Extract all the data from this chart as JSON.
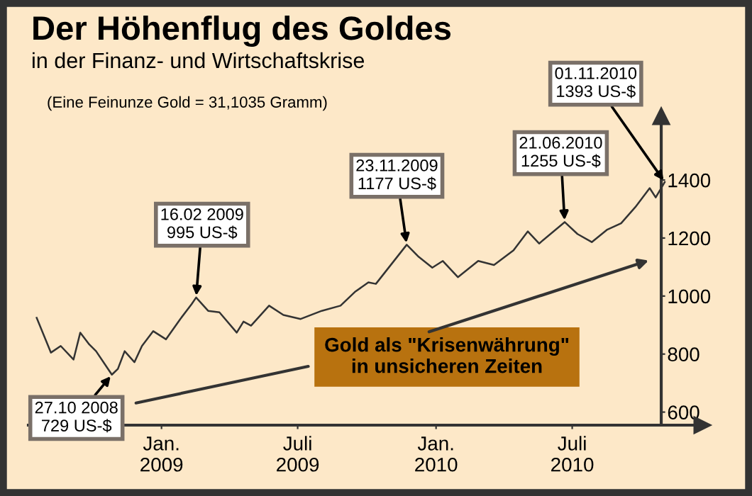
{
  "chart_data": {
    "type": "line",
    "title": "Der Höhenflug des Goldes",
    "subtitle": "in der Finanz- und Wirtschaftskrise",
    "x": [
      "2008-07-19",
      "2008-08-07",
      "2008-08-20",
      "2008-09-06",
      "2008-09-15",
      "2008-09-27",
      "2008-10-06",
      "2008-10-27",
      "2008-11-04",
      "2008-11-13",
      "2008-11-26",
      "2008-12-06",
      "2008-12-21",
      "2009-01-07",
      "2009-01-26",
      "2009-02-10",
      "2009-02-16",
      "2009-03-04",
      "2009-03-19",
      "2009-04-11",
      "2009-04-20",
      "2009-04-30",
      "2009-05-24",
      "2009-06-12",
      "2009-07-05",
      "2009-08-02",
      "2009-08-27",
      "2009-09-15",
      "2009-10-03",
      "2009-10-13",
      "2009-11-23",
      "2009-12-09",
      "2009-12-27",
      "2010-01-10",
      "2010-01-30",
      "2010-02-26",
      "2010-03-19",
      "2010-04-14",
      "2010-05-03",
      "2010-05-18",
      "2010-06-21",
      "2010-07-08",
      "2010-07-27",
      "2010-08-16",
      "2010-09-04",
      "2010-09-23",
      "2010-10-12",
      "2010-10-20",
      "2010-11-01"
    ],
    "series": [
      {
        "color": "#333333",
        "values": [
          925,
          805,
          828,
          781,
          874,
          833,
          810,
          729,
          749,
          810,
          772,
          828,
          879,
          851,
          921,
          972,
          995,
          949,
          944,
          874,
          912,
          898,
          967,
          935,
          921,
          949,
          967,
          1014,
          1047,
          1042,
          1177,
          1135,
          1098,
          1121,
          1065,
          1121,
          1107,
          1158,
          1223,
          1181,
          1255,
          1214,
          1186,
          1228,
          1251,
          1307,
          1372,
          1340,
          1393
        ]
      }
    ],
    "xlim": [
      "2008-07-08",
      "2010-12-21"
    ],
    "xticks": [
      {
        "value": "2009-01-01",
        "label": "Jan.\n2009"
      },
      {
        "value": "2009-07-01",
        "label": "Juli\n2009"
      },
      {
        "value": "2010-01-01",
        "label": "Jan.\n2010"
      },
      {
        "value": "2010-07-01",
        "label": "Juli\n2010"
      }
    ],
    "ylim": [
      555,
      1620
    ],
    "yticks": [
      600,
      800,
      1000,
      1200,
      1400
    ],
    "annotations": [
      "(Eine Feinunze Gold = 31,1035 Gramm)",
      {
        "text": "27.10 2008\n729 US-$",
        "x": "2008-10-27",
        "y": 729
      },
      {
        "text": "16.02 2009\n995 US-$",
        "x": "2009-02-16",
        "y": 995
      },
      {
        "text": "23.11.2009\n1177 US-$",
        "x": "2009-11-23",
        "y": 1177
      },
      {
        "text": "21.06.2010\n1255 US-$",
        "x": "2010-06-21",
        "y": 1255
      },
      {
        "text": "01.11.2010\n1393 US-$",
        "x": "2010-11-01",
        "y": 1393
      },
      "Gold als \"Krisenwährung\"\nin unsicheren Zeiten"
    ]
  }
}
